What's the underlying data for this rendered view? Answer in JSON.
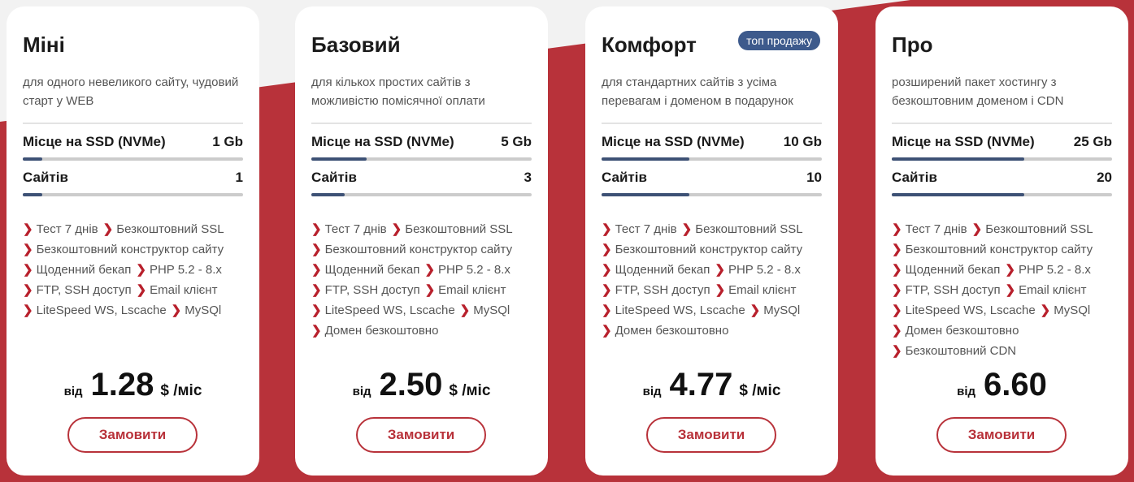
{
  "colors": {
    "accent": "#b8323a",
    "bar": "#3d5175",
    "badge": "#3d5a8c"
  },
  "plans": [
    {
      "title": "Міні",
      "badge": null,
      "desc": "для одного невеликого сайту, чудовий старт у WEB",
      "ssd_label": "Місце на SSD (NVMe)",
      "ssd": "1 Gb",
      "ssd_fill": 9,
      "sites_label": "Сайтів",
      "sites": "1",
      "sites_fill": 9,
      "features": [
        [
          "Тест 7 днів",
          "Безкоштовний SSL"
        ],
        [
          "Безкоштовний конструктор сайту"
        ],
        [
          "Щоденний бекап",
          "PHP 5.2 - 8.x"
        ],
        [
          "FTP, SSH доступ",
          "Email клієнт"
        ],
        [
          "LiteSpeed WS, Lscache",
          "MySQl"
        ]
      ],
      "price_from": "від",
      "price": "1.28",
      "unit": "$ /міс",
      "button": "Замовити"
    },
    {
      "title": "Базовий",
      "badge": null,
      "desc": "для кількох простих сайтів з можливістю помісячної оплати",
      "ssd_label": "Місце на SSD (NVMe)",
      "ssd": "5 Gb",
      "ssd_fill": 25,
      "sites_label": "Сайтів",
      "sites": "3",
      "sites_fill": 15,
      "features": [
        [
          "Тест 7 днів",
          "Безкоштовний SSL"
        ],
        [
          "Безкоштовний конструктор сайту"
        ],
        [
          "Щоденний бекап",
          "PHP 5.2 - 8.x"
        ],
        [
          "FTP, SSH доступ",
          "Email клієнт"
        ],
        [
          "LiteSpeed WS, Lscache",
          "MySQl"
        ],
        [
          "Домен безкоштовно"
        ]
      ],
      "price_from": "від",
      "price": "2.50",
      "unit": "$ /міс",
      "button": "Замовити"
    },
    {
      "title": "Комфорт",
      "badge": "топ продажу",
      "desc": "для стандартних сайтів з усіма перевагам і доменом в подарунок",
      "ssd_label": "Місце на SSD (NVMe)",
      "ssd": "10 Gb",
      "ssd_fill": 40,
      "sites_label": "Сайтів",
      "sites": "10",
      "sites_fill": 40,
      "features": [
        [
          "Тест 7 днів",
          "Безкоштовний SSL"
        ],
        [
          "Безкоштовний конструктор сайту"
        ],
        [
          "Щоденний бекап",
          "PHP 5.2 - 8.x"
        ],
        [
          "FTP, SSH доступ",
          "Email клієнт"
        ],
        [
          "LiteSpeed WS, Lscache",
          "MySQl"
        ],
        [
          "Домен безкоштовно"
        ]
      ],
      "price_from": "від",
      "price": "4.77",
      "unit": "$ /міс",
      "button": "Замовити"
    },
    {
      "title": "Про",
      "badge": null,
      "desc": "розширений пакет хостингу з безкоштовним доменом і CDN",
      "ssd_label": "Місце на SSD (NVMe)",
      "ssd": "25 Gb",
      "ssd_fill": 60,
      "sites_label": "Сайтів",
      "sites": "20",
      "sites_fill": 60,
      "features": [
        [
          "Тест 7 днів",
          "Безкоштовний SSL"
        ],
        [
          "Безкоштовний конструктор сайту"
        ],
        [
          "Щоденний бекап",
          "PHP 5.2 - 8.x"
        ],
        [
          "FTP, SSH доступ",
          "Email клієнт"
        ],
        [
          "LiteSpeed WS, Lscache",
          "MySQl"
        ],
        [
          "Домен безкоштовно"
        ],
        [
          "Безкоштовний CDN"
        ]
      ],
      "price_from": "від",
      "price": "6.60",
      "unit": "",
      "button": "Замовити"
    }
  ]
}
